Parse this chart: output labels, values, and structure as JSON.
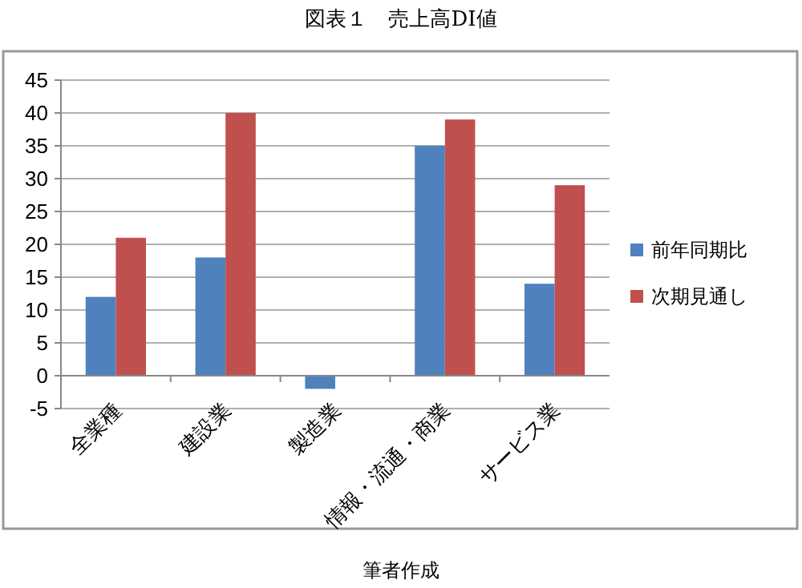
{
  "chart_data": {
    "type": "bar",
    "title": "図表１　売上高DI値",
    "categories": [
      "全業種",
      "建設業",
      "製造業",
      "情報・流通・商業",
      "サービス業"
    ],
    "series": [
      {
        "name": "前年同期比",
        "color": "#4f81bd",
        "values": [
          12,
          18,
          -2,
          35,
          14
        ]
      },
      {
        "name": "次期見通し",
        "color": "#c0504d",
        "values": [
          21,
          40,
          0,
          39,
          29
        ]
      }
    ],
    "ylim": [
      -5,
      45
    ],
    "yticks": [
      -5,
      0,
      5,
      10,
      15,
      20,
      25,
      30,
      35,
      40,
      45
    ],
    "grid": "y",
    "legend": "right",
    "annotations": [
      "筆者作成"
    ]
  }
}
